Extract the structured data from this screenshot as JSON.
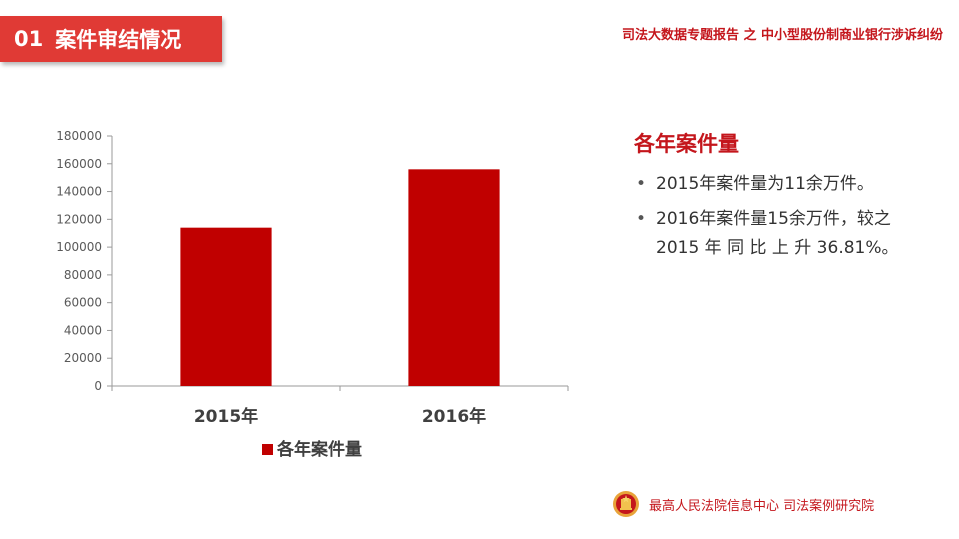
{
  "header": {
    "section_number": "01",
    "section_title": "案件审结情况",
    "report_title": "司法大数据专题报告 之 中小型股份制商业银行涉诉纠纷"
  },
  "chart_data": {
    "type": "bar",
    "categories": [
      "2015年",
      "2016年"
    ],
    "series": [
      {
        "name": "各年案件量",
        "values": [
          114000,
          156000
        ],
        "color": "#c00000"
      }
    ],
    "yticks": [
      0,
      20000,
      40000,
      60000,
      80000,
      100000,
      120000,
      140000,
      160000,
      180000
    ],
    "ylim": [
      0,
      180000
    ],
    "grid": false,
    "legend_position": "bottom"
  },
  "side_panel": {
    "title": "各年案件量",
    "bullets": [
      "2015年案件量为11余万件。",
      "2016年案件量15余万件，较之 2015 年 同 比 上 升 36.81%。"
    ]
  },
  "footer": {
    "emblem_icon": "court-emblem-icon",
    "text": "最高人民法院信息中心  司法案例研究院"
  },
  "colors": {
    "accent": "#e03a35",
    "title_red": "#c4161c",
    "bar": "#c00000"
  }
}
